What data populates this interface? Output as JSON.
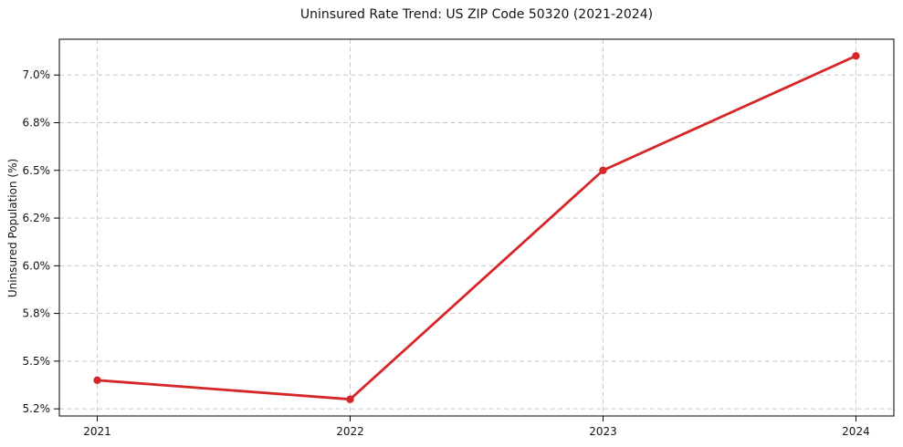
{
  "chart_data": {
    "type": "line",
    "title": "Uninsured Rate Trend: US ZIP Code 50320 (2021-2024)",
    "xlabel": "",
    "ylabel": "Uninsured Population (%)",
    "x": [
      2021,
      2022,
      2023,
      2024
    ],
    "series": [
      {
        "name": "Uninsured rate",
        "values": [
          5.4,
          5.3,
          6.5,
          7.1
        ]
      }
    ],
    "x_ticks": [
      {
        "value": 2021,
        "label": "2021"
      },
      {
        "value": 2022,
        "label": "2022"
      },
      {
        "value": 2023,
        "label": "2023"
      },
      {
        "value": 2024,
        "label": "2024"
      }
    ],
    "y_ticks": [
      {
        "value": 5.25,
        "label": "5.2%"
      },
      {
        "value": 5.5,
        "label": "5.5%"
      },
      {
        "value": 5.75,
        "label": "5.8%"
      },
      {
        "value": 6.0,
        "label": "6.0%"
      },
      {
        "value": 6.25,
        "label": "6.2%"
      },
      {
        "value": 6.5,
        "label": "6.5%"
      },
      {
        "value": 6.75,
        "label": "6.8%"
      },
      {
        "value": 7.0,
        "label": "7.0%"
      }
    ],
    "xlim": [
      2020.85,
      2024.15
    ],
    "ylim": [
      5.2125,
      7.1875
    ],
    "grid": {
      "show": true,
      "style": "dashed",
      "color": "#c7c7c7"
    },
    "line_color": "#d62728",
    "marker": "circle",
    "legend": "none",
    "background": "#ffffff"
  }
}
